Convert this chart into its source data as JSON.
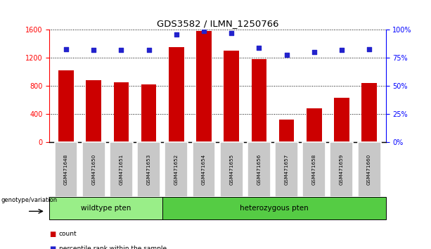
{
  "title": "GDS3582 / ILMN_1250766",
  "categories": [
    "GSM471648",
    "GSM471650",
    "GSM471651",
    "GSM471653",
    "GSM471652",
    "GSM471654",
    "GSM471655",
    "GSM471656",
    "GSM471657",
    "GSM471658",
    "GSM471659",
    "GSM471660"
  ],
  "bar_values": [
    1020,
    880,
    850,
    820,
    1350,
    1580,
    1300,
    1180,
    320,
    480,
    630,
    840
  ],
  "percentile_values": [
    83,
    82,
    82,
    82,
    96,
    99,
    97,
    84,
    78,
    80,
    82,
    83
  ],
  "wildtype_count": 4,
  "heterozygous_count": 8,
  "bar_color": "#cc0000",
  "dot_color": "#2222cc",
  "wildtype_color": "#99ee88",
  "heterozygous_color": "#55cc44",
  "box_color": "#c8c8c8",
  "ylim_left": [
    0,
    1600
  ],
  "ylim_right": [
    0,
    100
  ],
  "yticks_left": [
    0,
    400,
    800,
    1200,
    1600
  ],
  "yticks_right": [
    0,
    25,
    50,
    75,
    100
  ],
  "legend_count_label": "count",
  "legend_percentile_label": "percentile rank within the sample",
  "wildtype_label": "wildtype pten",
  "heterozygous_label": "heterozygous pten",
  "genotype_label": "genotype/variation"
}
